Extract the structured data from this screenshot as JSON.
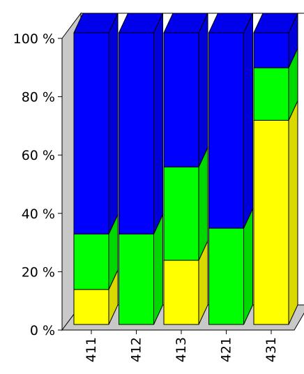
{
  "chart_data": {
    "type": "bar",
    "stacked": true,
    "normalized": true,
    "three_d": true,
    "categories": [
      "411",
      "412",
      "413",
      "421",
      "431"
    ],
    "series": [
      {
        "color": "#ffff00",
        "values": [
          12,
          0,
          22,
          0,
          70
        ]
      },
      {
        "color": "#00ff00",
        "values": [
          19,
          31,
          32,
          33,
          18
        ]
      },
      {
        "color": "#0000ff",
        "values": [
          69,
          69,
          46,
          67,
          12
        ]
      }
    ],
    "ylim": [
      0,
      100
    ],
    "y_ticks": [
      "0 %",
      "20 %",
      "40 %",
      "60 %",
      "80 %",
      "100 %"
    ],
    "y_tick_values": [
      0,
      20,
      40,
      60,
      80,
      100
    ],
    "grid": false,
    "legend": "none",
    "x_tick_rotation": -90
  }
}
